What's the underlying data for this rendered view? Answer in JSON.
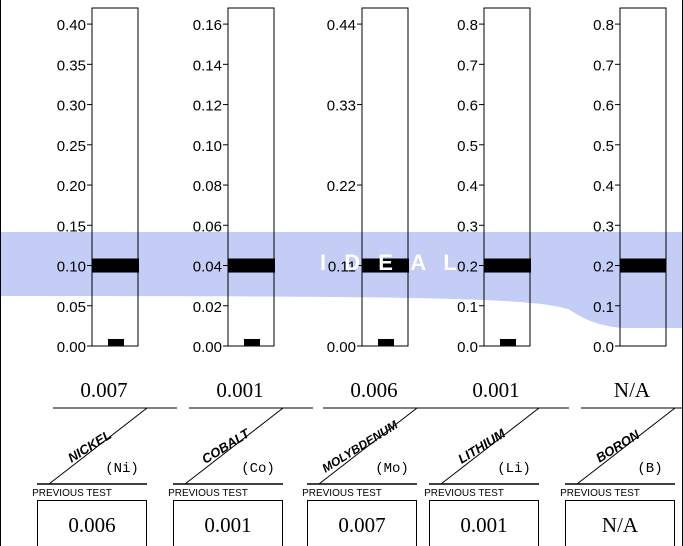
{
  "ideal_band": {
    "label": "I D E A L",
    "color": "#c4cdf6",
    "label_color": "#ffffff"
  },
  "section_label": "PREVIOUS TEST",
  "chart_data": [
    {
      "type": "bar",
      "element": "NICKEL",
      "symbol": "(Ni)",
      "ylim": [
        0,
        0.42
      ],
      "ticks": [
        "0.00",
        "0.05",
        "0.10",
        "0.15",
        "0.20",
        "0.25",
        "0.30",
        "0.35",
        "0.40"
      ],
      "tick_values": [
        0,
        0.05,
        0.1,
        0.15,
        0.2,
        0.25,
        0.3,
        0.35,
        0.4
      ],
      "ideal_marker": 0.1,
      "value": 0.007,
      "current_label": "0.007",
      "previous_label": "0.006"
    },
    {
      "type": "bar",
      "element": "COBALT",
      "symbol": "(Co)",
      "ylim": [
        0,
        0.168
      ],
      "ticks": [
        "0.00",
        "0.02",
        "0.04",
        "0.06",
        "0.08",
        "0.10",
        "0.12",
        "0.14",
        "0.16"
      ],
      "tick_values": [
        0,
        0.02,
        0.04,
        0.06,
        0.08,
        0.1,
        0.12,
        0.14,
        0.16
      ],
      "ideal_marker": 0.04,
      "value": 0.001,
      "current_label": "0.001",
      "previous_label": "0.001"
    },
    {
      "type": "bar",
      "element": "MOLYBDENUM",
      "symbol": "(Mo)",
      "ylim": [
        0,
        0.462
      ],
      "ticks": [
        "0.00",
        "0.11",
        "0.22",
        "0.33",
        "0.44"
      ],
      "tick_values": [
        0,
        0.11,
        0.22,
        0.33,
        0.44
      ],
      "ideal_marker": 0.11,
      "value": 0.006,
      "current_label": "0.006",
      "previous_label": "0.007"
    },
    {
      "type": "bar",
      "element": "LITHIUM",
      "symbol": "(Li)",
      "ylim": [
        0,
        0.84
      ],
      "ticks": [
        "0.0",
        "0.1",
        "0.2",
        "0.3",
        "0.4",
        "0.5",
        "0.6",
        "0.7",
        "0.8"
      ],
      "tick_values": [
        0,
        0.1,
        0.2,
        0.3,
        0.4,
        0.5,
        0.6,
        0.7,
        0.8
      ],
      "ideal_marker": 0.2,
      "value": 0.001,
      "current_label": "0.001",
      "previous_label": "0.001"
    },
    {
      "type": "bar",
      "element": "BORON",
      "symbol": "(B)",
      "ylim": [
        0,
        0.84
      ],
      "ticks": [
        "0.0",
        "0.1",
        "0.2",
        "0.3",
        "0.4",
        "0.5",
        "0.6",
        "0.7",
        "0.8"
      ],
      "tick_values": [
        0,
        0.1,
        0.2,
        0.3,
        0.4,
        0.5,
        0.6,
        0.7,
        0.8
      ],
      "ideal_marker": 0.2,
      "value": null,
      "current_label": "N/A",
      "previous_label": "N/A"
    }
  ]
}
